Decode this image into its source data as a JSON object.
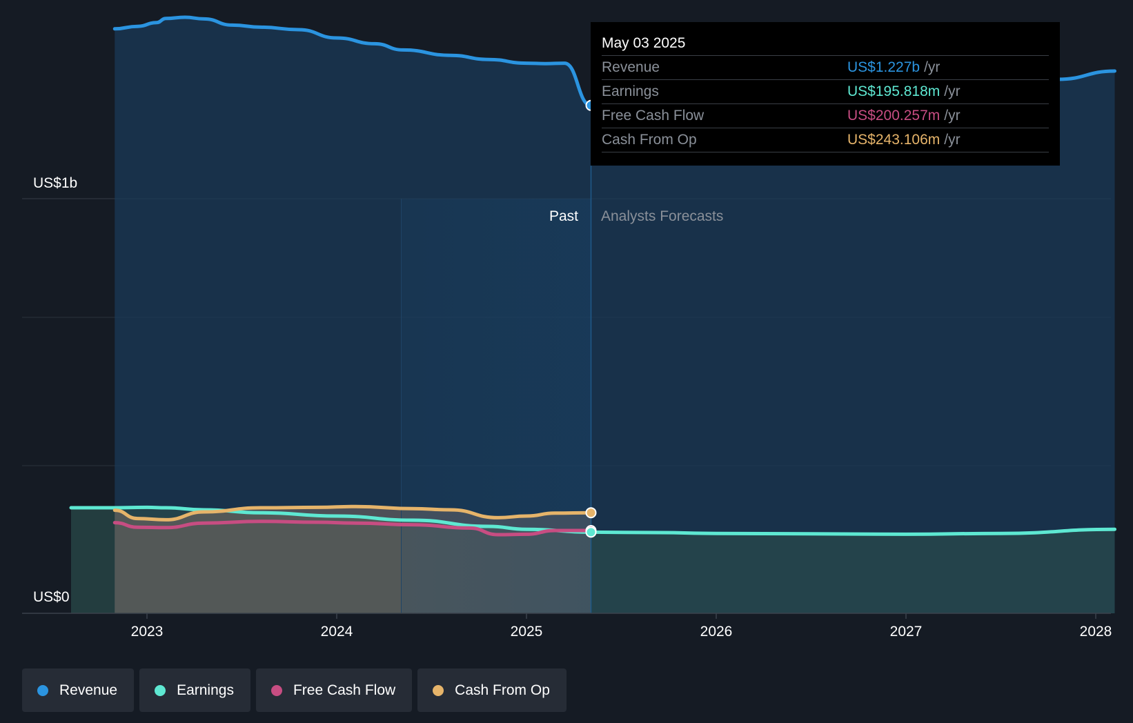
{
  "colors": {
    "background": "#151b24",
    "revenue": "#2b94e0",
    "earnings": "#5ee8d2",
    "free_cash_flow": "#c74d82",
    "cash_from_op": "#e6b46a"
  },
  "chart_data": {
    "type": "area",
    "title": "",
    "xlabel": "",
    "ylabel": "",
    "y_axis_labels": [
      "US$1b",
      "US$0"
    ],
    "xticks": [
      "2023",
      "2024",
      "2025",
      "2026",
      "2027",
      "2028"
    ],
    "xlim": [
      2022.6,
      2028.1
    ],
    "ylim": [
      0,
      1500
    ],
    "grid": true,
    "past_label": "Past",
    "forecast_label": "Analysts Forecasts",
    "past_end": 2025.34,
    "shaded_past_start": 2024.34,
    "legend_position": "bottom-left",
    "series": [
      {
        "name": "Revenue",
        "key": "revenue",
        "x": [
          2022.83,
          2022.95,
          2023.05,
          2023.1,
          2023.2,
          2023.3,
          2023.45,
          2023.6,
          2023.8,
          2024.0,
          2024.2,
          2024.35,
          2024.6,
          2024.8,
          2025.0,
          2025.1,
          2025.2,
          2025.34,
          2025.6,
          2025.8,
          2026.0,
          2026.3,
          2026.6,
          2026.9,
          2027.0,
          2027.3,
          2027.6,
          2027.8,
          2028.1
        ],
        "y": [
          1412,
          1418,
          1427,
          1437,
          1440,
          1436,
          1421,
          1416,
          1410,
          1390,
          1376,
          1361,
          1348,
          1338,
          1329,
          1328,
          1329,
          1227,
          1235,
          1240,
          1245,
          1251,
          1255,
          1258,
          1260,
          1265,
          1277,
          1290,
          1310
        ],
        "forecast_from": 17
      },
      {
        "name": "Earnings",
        "key": "earnings",
        "x": [
          2022.6,
          2022.8,
          2023.0,
          2023.1,
          2023.3,
          2023.6,
          2024.0,
          2024.4,
          2024.8,
          2025.0,
          2025.34,
          2025.7,
          2026.0,
          2026.5,
          2027.0,
          2027.5,
          2028.1
        ],
        "y": [
          255,
          255,
          256,
          255,
          250,
          243,
          235,
          225,
          210,
          203,
          196,
          195,
          193,
          192,
          191,
          193,
          203
        ],
        "forecast_from": 10
      },
      {
        "name": "Free Cash Flow",
        "key": "free_cash_flow",
        "x": [
          2022.83,
          2022.95,
          2023.1,
          2023.3,
          2023.6,
          2023.9,
          2024.1,
          2024.4,
          2024.7,
          2024.85,
          2025.0,
          2025.15,
          2025.34
        ],
        "y": [
          219,
          208,
          207,
          218,
          222,
          220,
          218,
          214,
          206,
          190,
          191,
          200,
          200
        ],
        "forecast_from": -1
      },
      {
        "name": "Cash From Op",
        "key": "cash_from_op",
        "x": [
          2022.83,
          2022.95,
          2023.1,
          2023.3,
          2023.6,
          2023.9,
          2024.1,
          2024.4,
          2024.6,
          2024.85,
          2025.0,
          2025.15,
          2025.34
        ],
        "y": [
          249,
          229,
          226,
          245,
          255,
          256,
          258,
          253,
          250,
          231,
          235,
          242,
          243
        ],
        "forecast_from": -1
      }
    ]
  },
  "tooltip": {
    "date": "May 03 2025",
    "rows": [
      {
        "label": "Revenue",
        "value": "US$1.227b",
        "unit": "/yr",
        "key": "revenue"
      },
      {
        "label": "Earnings",
        "value": "US$195.818m",
        "unit": "/yr",
        "key": "earnings"
      },
      {
        "label": "Free Cash Flow",
        "value": "US$200.257m",
        "unit": "/yr",
        "key": "free_cash_flow"
      },
      {
        "label": "Cash From Op",
        "value": "US$243.106m",
        "unit": "/yr",
        "key": "cash_from_op"
      }
    ]
  },
  "legend": {
    "items": [
      {
        "label": "Revenue",
        "key": "revenue"
      },
      {
        "label": "Earnings",
        "key": "earnings"
      },
      {
        "label": "Free Cash Flow",
        "key": "free_cash_flow"
      },
      {
        "label": "Cash From Op",
        "key": "cash_from_op"
      }
    ]
  }
}
